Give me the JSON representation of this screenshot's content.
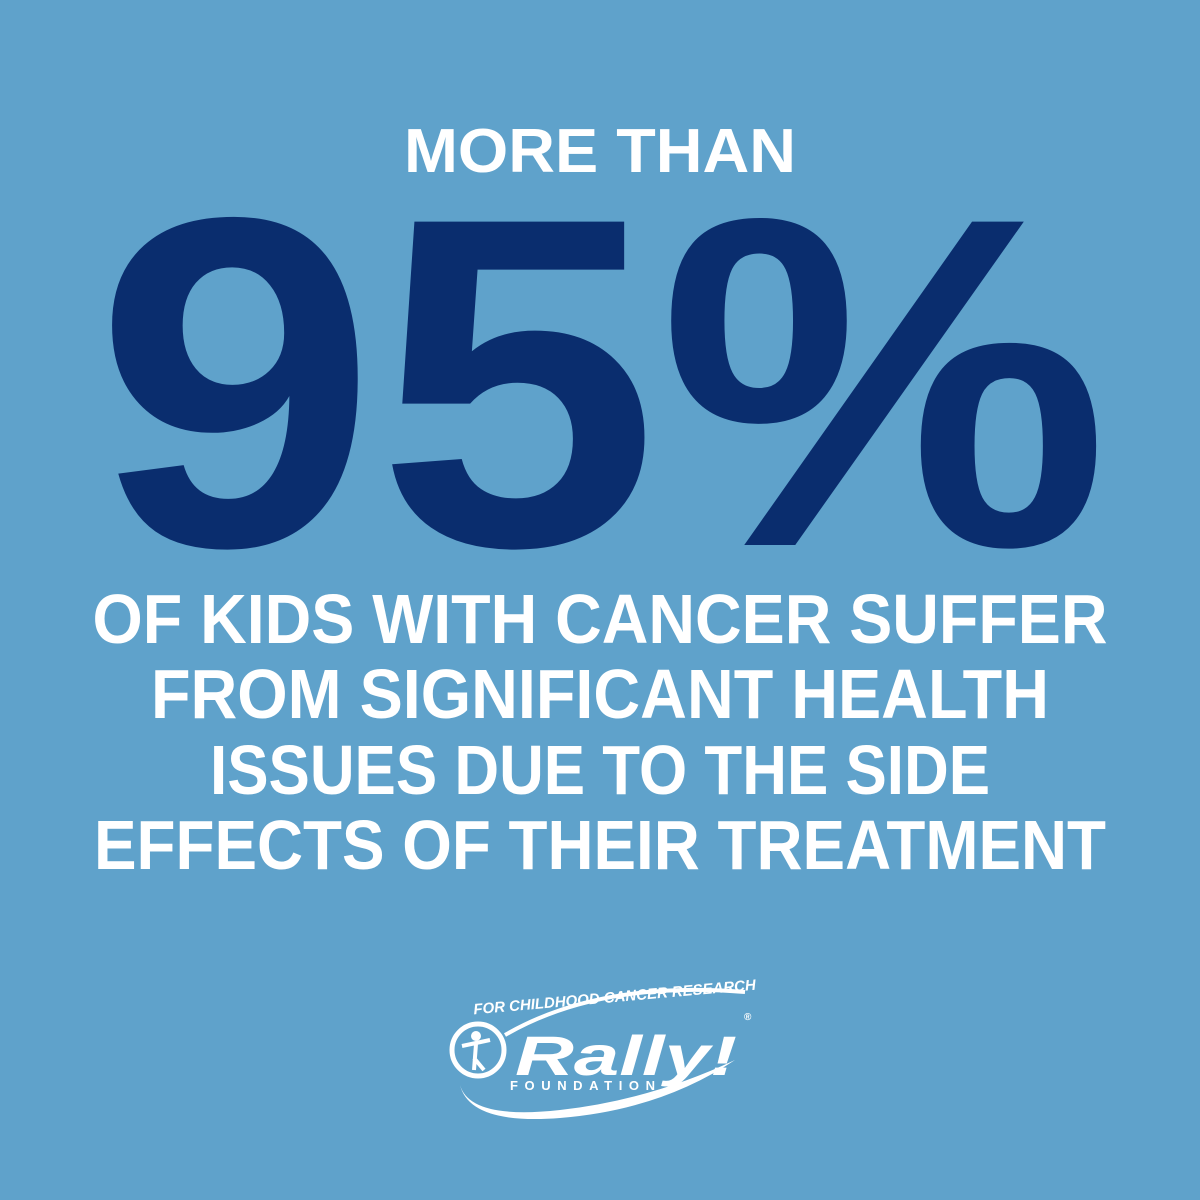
{
  "header": {
    "title": "MORE THAN"
  },
  "stat": {
    "value": "95%"
  },
  "body": {
    "lines": [
      "OF KIDS WITH CANCER SUFFER",
      "FROM SIGNIFICANT HEALTH",
      "ISSUES DUE TO THE SIDE",
      "EFFECTS OF THEIR TREATMENT"
    ]
  },
  "logo": {
    "tagline": "FOR CHILDHOOD CANCER RESEARCH",
    "name": "Rally!",
    "registered": "®",
    "subtitle": "FOUNDATION"
  }
}
